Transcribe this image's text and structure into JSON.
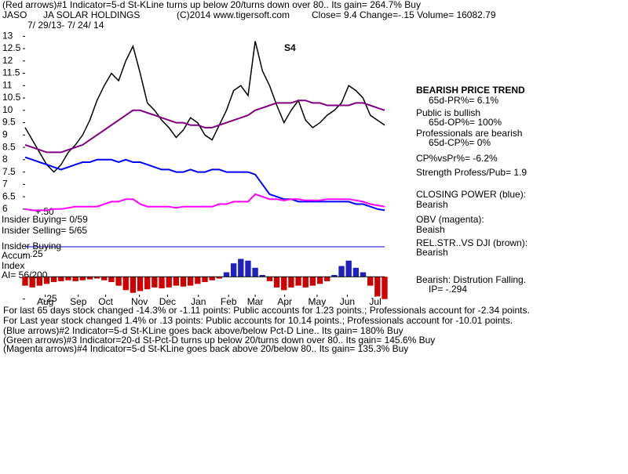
{
  "header": {
    "signal_line": "(Red arrows)#1 Indicator=5-d St-KLine turns up below 20/turns down over 80.. Its gain= 264.7% Buy",
    "symbol": "JASO",
    "company": "JA SOLAR HOLDINGS",
    "copyright": "(C)2014 www.tigersoft.com",
    "quote": "Close=  9.4  Change=-.15 Volume= 16082.79",
    "date_range": "7/ 29/13- 7/ 24/ 14"
  },
  "annotation": "S4",
  "left_labels": [
    "+.50",
    "Insider Buying= 0/59",
    "Insider Selling= 5/65",
    "Insider Buying",
    "Accum",
    "Index",
    "AI= 56/200"
  ],
  "right_panel": [
    "BEARISH PRICE TREND",
    "65d-PR%= 6.1%",
    "Public is bullish",
    "65d-OP%= 100%",
    "Professionals are bearish",
    "65d-CP%= 0%",
    "CP%vsPr%= -6.2%",
    "Strength Profess/Pub= 1.9",
    "CLOSING POWER (blue):",
    "Bearish",
    "OBV (magenta):",
    "Beaish",
    "REL.STR..VS DJI (brown):",
    "Bearish",
    "Bearish: Distrution Falling.",
    "IP= -.294"
  ],
  "footer": [
    "For last 65 days stock changed -14.3% or -1.11 points:  Public accounts for  1.23 points.;  Professionals account for -2.34 points.",
    "For Last year stock changed  1.4% or  .13 points:  Public accounts for  10.14 points.;  Professionals account for -10.01 points.",
    "(Blue arrows)#2 Indicator=5-d St-KLine goes back above/below Pct-D Line.. Its gain= 180% Buy",
    "(Green arrows)#3 Indicator=20-d St-Pct-D turns up below 20/turns down over 80.. Its gain= 145.6% Buy",
    "(Magenta arrows)#4 Indicator=5-d St-KLine goes back above 20/below 80.. Its gain= 135.3% Buy"
  ],
  "chart_data": [
    {
      "type": "line",
      "xlim": [
        0,
        50
      ],
      "xticks": [
        {
          "value": 2.8,
          "label": "Aug"
        },
        {
          "value": 7.4,
          "label": "Sep"
        },
        {
          "value": 11.2,
          "label": "Oct"
        },
        {
          "value": 15.9,
          "label": "Nov"
        },
        {
          "value": 19.8,
          "label": "Dec"
        },
        {
          "value": 24.1,
          "label": "Jan"
        },
        {
          "value": 28.3,
          "label": "Feb"
        },
        {
          "value": 32,
          "label": "Mar"
        },
        {
          "value": 36.1,
          "label": "Apr"
        },
        {
          "value": 40.6,
          "label": "May"
        },
        {
          "value": 44.8,
          "label": "Jun"
        },
        {
          "value": 48.7,
          "label": "Jul"
        }
      ],
      "ylim": [
        5.9,
        13.2
      ],
      "yticks": [
        13,
        12.5,
        12,
        11.5,
        11,
        10.5,
        10,
        9.5,
        9,
        8.5,
        8,
        7.5,
        7,
        6.5,
        6
      ],
      "series": [
        {
          "color": "#000000",
          "values": [
            9.3,
            8.8,
            8.3,
            7.8,
            7.5,
            7.8,
            8.3,
            8.6,
            9.0,
            9.6,
            10.4,
            11.0,
            11.5,
            11.2,
            12.0,
            12.6,
            11.5,
            10.3,
            10.0,
            9.6,
            9.3,
            8.9,
            9.2,
            9.7,
            9.5,
            9.0,
            8.8,
            9.4,
            10.0,
            10.8,
            11.0,
            10.6,
            12.8,
            11.6,
            11.0,
            10.2,
            9.5,
            10.0,
            10.4,
            9.6,
            9.3,
            9.5,
            9.8,
            10.0,
            10.3,
            11.0,
            10.8,
            10.5,
            9.8,
            9.6,
            9.4
          ]
        },
        {
          "color": "#800080",
          "values": [
            8.6,
            8.5,
            8.4,
            8.3,
            8.3,
            8.3,
            8.4,
            8.5,
            8.6,
            8.8,
            9.0,
            9.2,
            9.4,
            9.6,
            9.8,
            10.0,
            10.0,
            9.9,
            9.8,
            9.7,
            9.6,
            9.5,
            9.5,
            9.4,
            9.4,
            9.3,
            9.3,
            9.4,
            9.5,
            9.6,
            9.7,
            9.8,
            10.0,
            10.1,
            10.2,
            10.3,
            10.3,
            10.3,
            10.4,
            10.4,
            10.3,
            10.3,
            10.2,
            10.2,
            10.2,
            10.2,
            10.3,
            10.3,
            10.2,
            10.1,
            10.0
          ]
        },
        {
          "color": "#0000ff",
          "values": [
            8.1,
            8.0,
            7.9,
            7.8,
            7.7,
            7.6,
            7.7,
            7.8,
            7.9,
            7.9,
            8.0,
            8.0,
            8.0,
            7.9,
            8.0,
            7.9,
            7.9,
            7.8,
            7.7,
            7.6,
            7.6,
            7.5,
            7.5,
            7.6,
            7.5,
            7.5,
            7.6,
            7.6,
            7.5,
            7.5,
            7.5,
            7.5,
            7.4,
            7.0,
            6.6,
            6.5,
            6.4,
            6.4,
            6.3,
            6.3,
            6.3,
            6.3,
            6.3,
            6.3,
            6.3,
            6.3,
            6.2,
            6.2,
            6.1,
            6.0,
            5.95
          ]
        },
        {
          "color": "#ff00ff",
          "values": [
            6.0,
            5.95,
            5.95,
            5.95,
            6.0,
            6.0,
            6.05,
            6.1,
            6.1,
            6.1,
            6.1,
            6.2,
            6.3,
            6.3,
            6.4,
            6.4,
            6.2,
            6.1,
            6.1,
            6.1,
            6.1,
            6.05,
            6.1,
            6.1,
            6.1,
            6.1,
            6.1,
            6.2,
            6.2,
            6.3,
            6.3,
            6.3,
            6.6,
            6.5,
            6.4,
            6.4,
            6.35,
            6.4,
            6.4,
            6.35,
            6.35,
            6.35,
            6.4,
            6.4,
            6.4,
            6.4,
            6.35,
            6.3,
            6.2,
            6.15,
            6.1
          ]
        }
      ]
    },
    {
      "type": "bar",
      "xlim": [
        0,
        50
      ],
      "ylim": [
        -0.27,
        0.3
      ],
      "yticks": [
        {
          "value": 0.25,
          "label": ".25"
        },
        {
          "value": -0.25,
          "label": "-.25"
        }
      ],
      "pos_color": "#2020c0",
      "neg_color": "#cc0000",
      "values": [
        -0.1,
        -0.12,
        -0.1,
        -0.08,
        -0.06,
        -0.05,
        -0.04,
        -0.05,
        -0.04,
        -0.03,
        -0.02,
        -0.04,
        -0.06,
        -0.1,
        -0.15,
        -0.18,
        -0.16,
        -0.14,
        -0.12,
        -0.13,
        -0.12,
        -0.1,
        -0.11,
        -0.1,
        -0.08,
        -0.06,
        -0.04,
        -0.02,
        0.05,
        0.15,
        0.2,
        0.18,
        0.1,
        0.02,
        -0.05,
        -0.12,
        -0.15,
        -0.12,
        -0.1,
        -0.12,
        -0.1,
        -0.08,
        -0.05,
        0.02,
        0.12,
        0.18,
        0.1,
        0.05,
        -0.1,
        -0.22,
        -0.25
      ]
    }
  ]
}
